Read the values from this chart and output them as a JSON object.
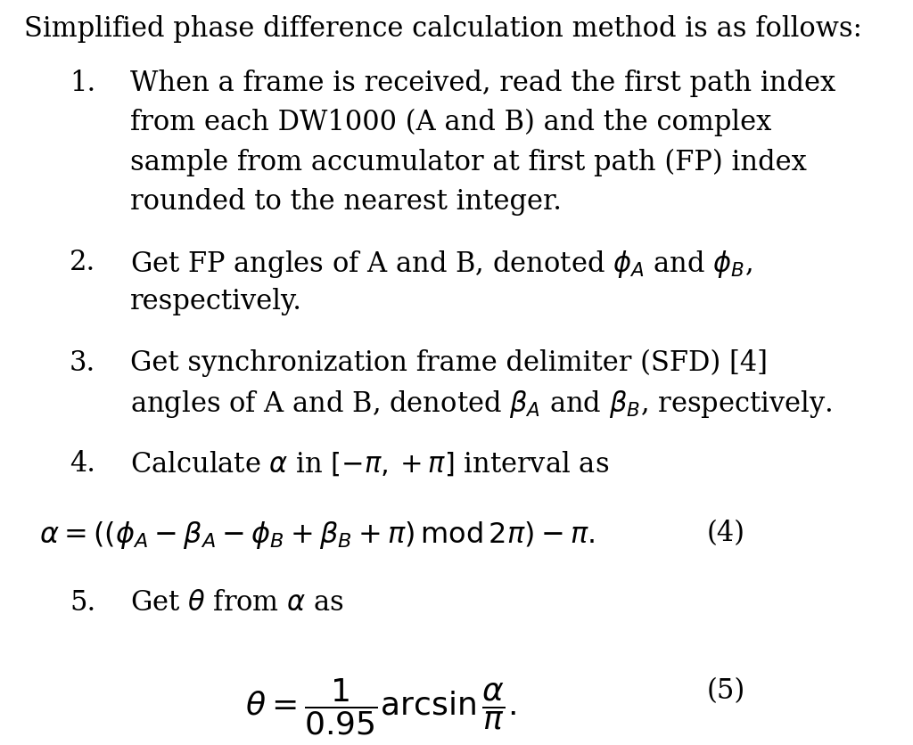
{
  "background_color": "#ffffff",
  "text_color": "#000000",
  "figsize": [
    10.24,
    8.36
  ],
  "dpi": 100,
  "title_text": "Simplified phase difference calculation method is as follows:",
  "item1": "When a frame is received, read the first path index\nfrom each DW1000 (A and B) and the complex\nsample from accumulator at first path (FP) index\nrounded to the nearest integer.",
  "item2_pre": "Get FP angles of A and B, denoted ",
  "item2_post": " and ",
  "item2_end": ",\nrespectively.",
  "item3_pre": "Get synchronization frame delimiter (SFD) [4]\nangles of A and B, denoted ",
  "item3_mid": " and ",
  "item3_post": ", respectively.",
  "item4": "Calculate ",
  "item4_post": " in [−π, +π] interval as",
  "eq4_label": "(4)",
  "eq5_label": "(5)",
  "font_size_title": 22,
  "font_size_body": 22,
  "font_size_math": 22
}
